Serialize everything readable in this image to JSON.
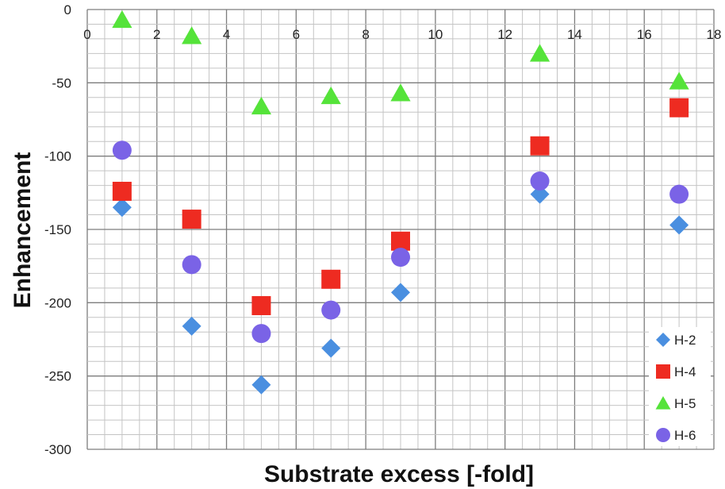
{
  "chart_data": {
    "type": "scatter",
    "xlabel": "Substrate excess [-fold]",
    "ylabel": "Enhancement",
    "xlim": [
      0,
      18
    ],
    "ylim": [
      -300,
      0
    ],
    "x_ticks": [
      0,
      2,
      4,
      6,
      8,
      10,
      12,
      14,
      16,
      18
    ],
    "y_ticks": [
      0,
      -50,
      -100,
      -150,
      -200,
      -250,
      -300
    ],
    "x_tick_labels": [
      "0",
      "2",
      "4",
      "6",
      "8",
      "10",
      "12",
      "14",
      "16",
      "18"
    ],
    "y_tick_labels": [
      "0",
      "-50",
      "-100",
      "-150",
      "-200",
      "-250",
      "-300"
    ],
    "x_axis_position": "top",
    "grid": true,
    "minor_grid": {
      "x_step": 0.5,
      "y_step": 10
    },
    "legend_position": "bottom-right",
    "series": [
      {
        "name": "H-2",
        "marker": "diamond",
        "color": "#4a8fe0",
        "x": [
          1,
          3,
          5,
          7,
          9,
          13,
          17
        ],
        "y": [
          -135,
          -216,
          -256,
          -231,
          -193,
          -126,
          -147
        ]
      },
      {
        "name": "H-4",
        "marker": "square",
        "color": "#ee2b21",
        "x": [
          1,
          3,
          5,
          7,
          9,
          13,
          17
        ],
        "y": [
          -124,
          -143,
          -202,
          -184,
          -158,
          -93,
          -67
        ]
      },
      {
        "name": "H-5",
        "marker": "triangle",
        "color": "#55e33a",
        "x": [
          1,
          3,
          5,
          7,
          9,
          13,
          17
        ],
        "y": [
          -7,
          -18,
          -66,
          -59,
          -57,
          -30,
          -49
        ]
      },
      {
        "name": "H-6",
        "marker": "circle",
        "color": "#7a63e6",
        "x": [
          1,
          3,
          5,
          7,
          9,
          13,
          17
        ],
        "y": [
          -96,
          -174,
          -221,
          -205,
          -169,
          -117,
          -126
        ]
      }
    ]
  }
}
